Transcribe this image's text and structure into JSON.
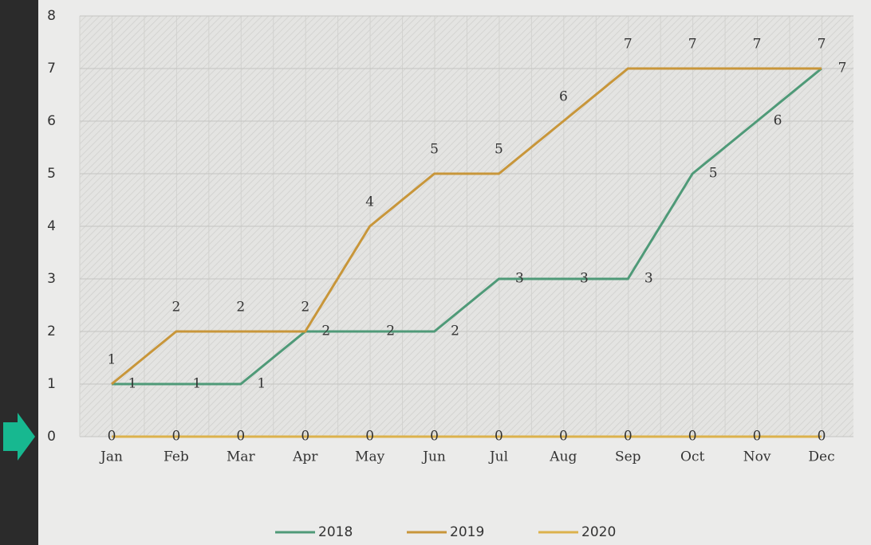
{
  "chart_data": {
    "type": "line",
    "categories": [
      "Jan",
      "Feb",
      "Mar",
      "Apr",
      "May",
      "Jun",
      "Jul",
      "Aug",
      "Sep",
      "Oct",
      "Nov",
      "Dec"
    ],
    "series": [
      {
        "name": "2018",
        "color": "#4f9a78",
        "values": [
          1,
          1,
          1,
          2,
          2,
          2,
          3,
          3,
          3,
          5,
          6,
          7
        ]
      },
      {
        "name": "2019",
        "color": "#c8963a",
        "values": [
          1,
          2,
          2,
          2,
          4,
          5,
          5,
          6,
          7,
          7,
          7,
          7
        ]
      },
      {
        "name": "2020",
        "color": "#dcb24c",
        "values": [
          0,
          0,
          0,
          0,
          0,
          0,
          0,
          0,
          0,
          0,
          0,
          0
        ]
      }
    ],
    "ylim": [
      0,
      8
    ],
    "yticks": [
      0,
      1,
      2,
      3,
      4,
      5,
      6,
      7,
      8
    ],
    "grid": true
  }
}
